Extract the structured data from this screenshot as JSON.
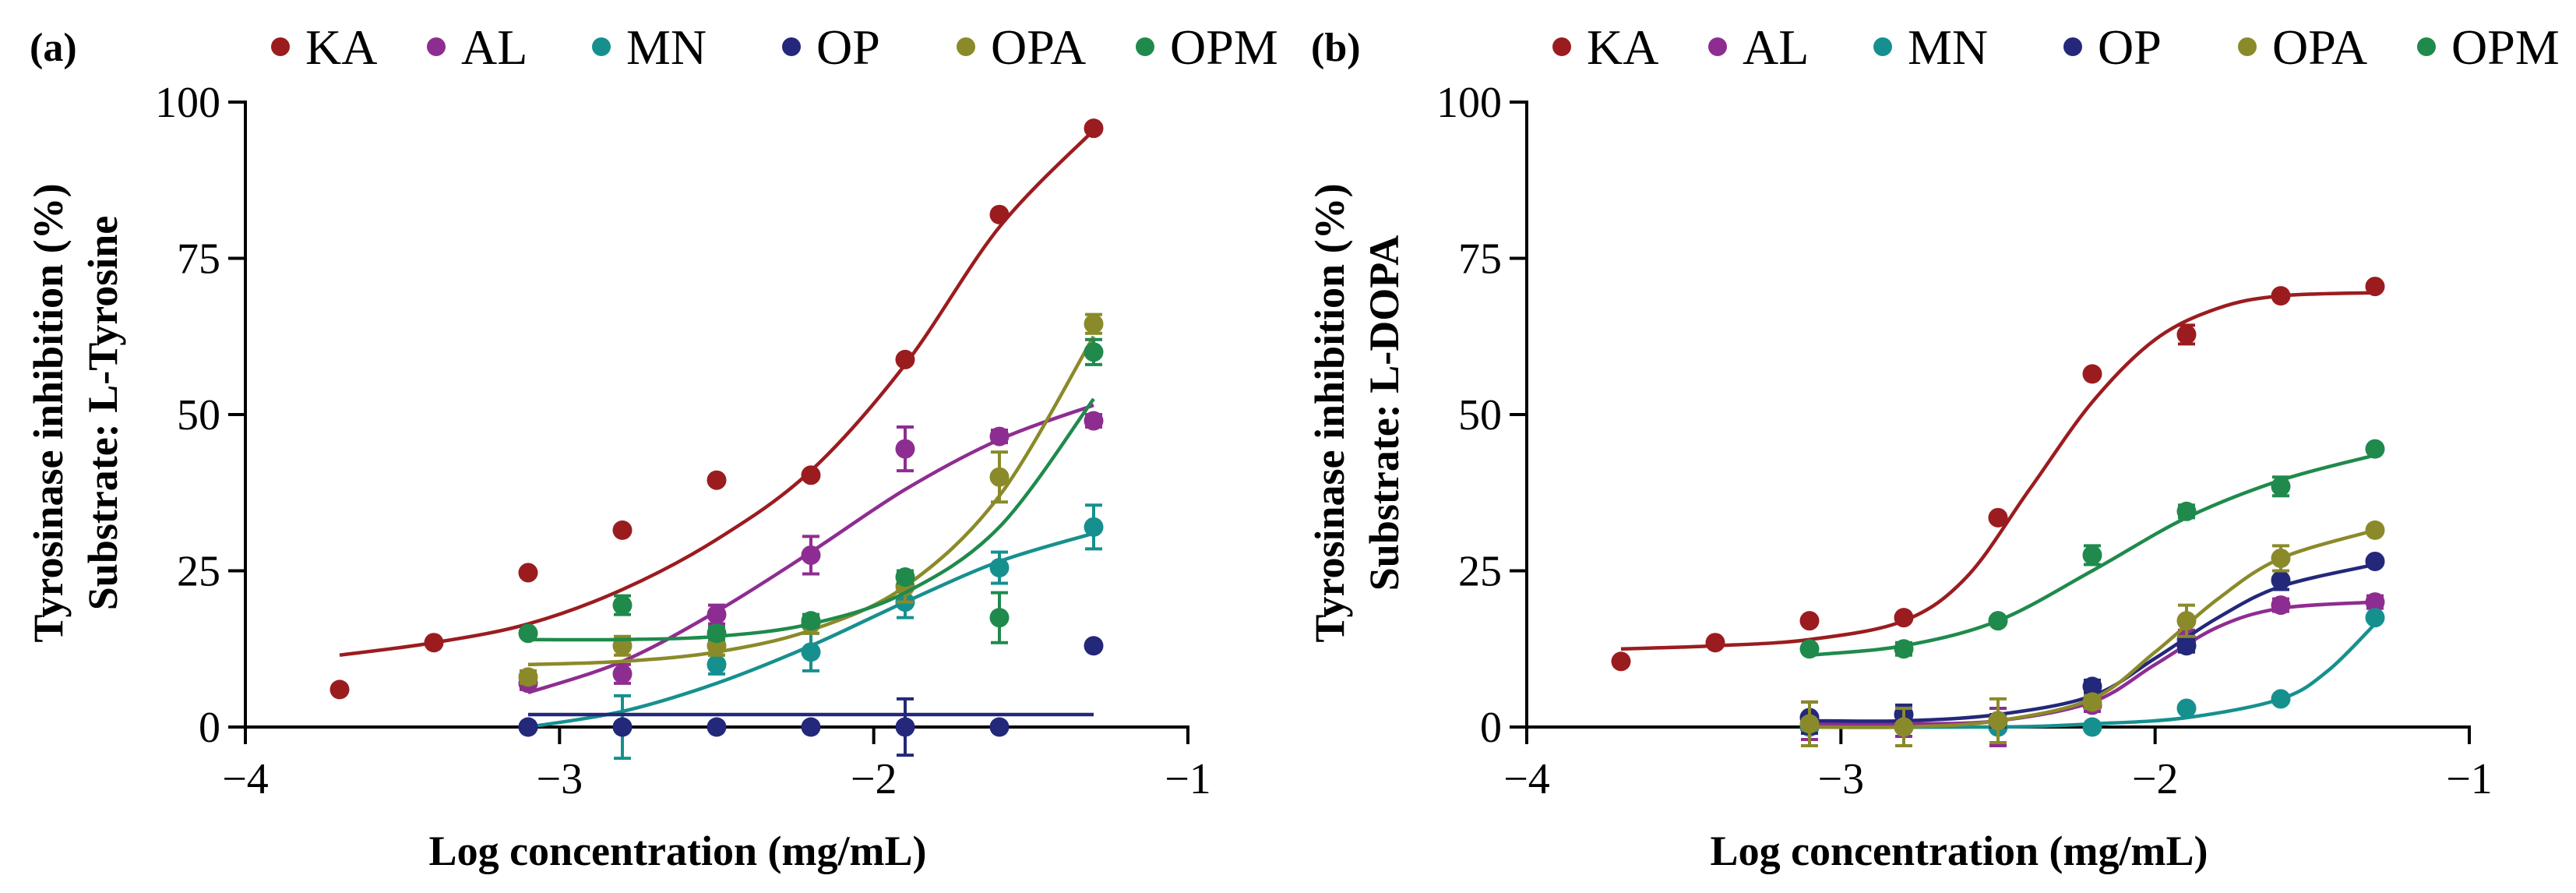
{
  "series_colors": {
    "KA": "#9b1c1f",
    "AL": "#8e2d91",
    "MN": "#16908f",
    "OP": "#23287a",
    "OPA": "#8a8a2a",
    "OPM": "#1f8a4c"
  },
  "legend_order": [
    "KA",
    "AL",
    "MN",
    "OP",
    "OPA",
    "OPM"
  ],
  "chart_data": [
    {
      "panel_label": "(a)",
      "type": "scatter",
      "title": "",
      "xlabel": "Log concentration (mg/mL)",
      "ylabel_line1": "Tyrosinase inhibition (%)",
      "ylabel_line2": "Substrate: L-Tyrosine",
      "xlim": [
        -4,
        -1
      ],
      "ylim": [
        0,
        100
      ],
      "xticks": [
        -4,
        -3,
        -2,
        -1
      ],
      "xtick_labels": [
        "−4",
        "−3",
        "−2",
        "−1"
      ],
      "yticks": [
        0,
        25,
        50,
        75,
        100
      ],
      "ytick_labels": [
        "0",
        "25",
        "50",
        "75",
        "100"
      ],
      "series": [
        {
          "name": "KA",
          "points": [
            {
              "x": -3.7,
              "y": 6,
              "err": 0
            },
            {
              "x": -3.4,
              "y": 13.5,
              "err": 0
            },
            {
              "x": -3.1,
              "y": 24.7,
              "err": 0
            },
            {
              "x": -2.8,
              "y": 31.5,
              "err": 0
            },
            {
              "x": -2.5,
              "y": 39.5,
              "err": 0
            },
            {
              "x": -2.2,
              "y": 40.3,
              "err": 0
            },
            {
              "x": -1.9,
              "y": 58.8,
              "err": 0
            },
            {
              "x": -1.6,
              "y": 82,
              "err": 0
            },
            {
              "x": -1.3,
              "y": 95.8,
              "err": 0
            }
          ],
          "curve": [
            [
              -3.7,
              11.5
            ],
            [
              -3.4,
              13.5
            ],
            [
              -3.1,
              16.5
            ],
            [
              -2.8,
              22
            ],
            [
              -2.5,
              30
            ],
            [
              -2.2,
              41
            ],
            [
              -1.9,
              58
            ],
            [
              -1.6,
              80
            ],
            [
              -1.3,
              95.5
            ]
          ]
        },
        {
          "name": "AL",
          "points": [
            {
              "x": -3.1,
              "y": 7,
              "err": 1
            },
            {
              "x": -2.8,
              "y": 8.5,
              "err": 1.5
            },
            {
              "x": -2.5,
              "y": 18,
              "err": 1.5
            },
            {
              "x": -2.2,
              "y": 27.5,
              "err": 3
            },
            {
              "x": -1.9,
              "y": 44.5,
              "err": 3.5
            },
            {
              "x": -1.6,
              "y": 46.5,
              "err": 1
            },
            {
              "x": -1.3,
              "y": 49,
              "err": 1
            }
          ],
          "curve": [
            [
              -3.1,
              5.5
            ],
            [
              -2.8,
              10.5
            ],
            [
              -2.5,
              18.5
            ],
            [
              -2.2,
              28
            ],
            [
              -1.9,
              38
            ],
            [
              -1.6,
              46
            ],
            [
              -1.3,
              51.5
            ]
          ]
        },
        {
          "name": "MN",
          "points": [
            {
              "x": -3.1,
              "y": 0,
              "err": 0
            },
            {
              "x": -2.8,
              "y": 0,
              "err": 5
            },
            {
              "x": -2.5,
              "y": 10,
              "err": 1.5
            },
            {
              "x": -2.2,
              "y": 12,
              "err": 3
            },
            {
              "x": -1.9,
              "y": 20,
              "err": 2.5
            },
            {
              "x": -1.6,
              "y": 25.5,
              "err": 2.5
            },
            {
              "x": -1.3,
              "y": 32,
              "err": 3.5
            }
          ],
          "curve": [
            [
              -3.1,
              0
            ],
            [
              -2.8,
              2.5
            ],
            [
              -2.5,
              7
            ],
            [
              -2.2,
              13
            ],
            [
              -1.9,
              20
            ],
            [
              -1.6,
              26.5
            ],
            [
              -1.3,
              31
            ]
          ]
        },
        {
          "name": "OP",
          "points": [
            {
              "x": -3.1,
              "y": 0,
              "err": 0
            },
            {
              "x": -2.8,
              "y": 0,
              "err": 0
            },
            {
              "x": -2.5,
              "y": 0,
              "err": 0
            },
            {
              "x": -2.2,
              "y": 0,
              "err": 0
            },
            {
              "x": -1.9,
              "y": 0,
              "err": 4.5
            },
            {
              "x": -1.6,
              "y": 0,
              "err": 0
            },
            {
              "x": -1.3,
              "y": 13,
              "err": 0
            }
          ],
          "curve": [
            [
              -3.1,
              2
            ],
            [
              -1.3,
              2
            ]
          ]
        },
        {
          "name": "OPA",
          "points": [
            {
              "x": -3.1,
              "y": 8,
              "err": 1
            },
            {
              "x": -2.8,
              "y": 13,
              "err": 1.5
            },
            {
              "x": -2.5,
              "y": 13,
              "err": 1.5
            },
            {
              "x": -2.2,
              "y": 16.5,
              "err": 1.5
            },
            {
              "x": -1.9,
              "y": 22.5,
              "err": 2.5
            },
            {
              "x": -1.6,
              "y": 40,
              "err": 4
            },
            {
              "x": -1.3,
              "y": 64.5,
              "err": 1.5
            }
          ],
          "curve": [
            [
              -3.1,
              10
            ],
            [
              -2.8,
              10.5
            ],
            [
              -2.5,
              12
            ],
            [
              -2.2,
              15.5
            ],
            [
              -1.9,
              22.5
            ],
            [
              -1.6,
              37
            ],
            [
              -1.3,
              62.5
            ]
          ]
        },
        {
          "name": "OPM",
          "points": [
            {
              "x": -3.1,
              "y": 15,
              "err": 0.5
            },
            {
              "x": -2.8,
              "y": 19.5,
              "err": 1.5
            },
            {
              "x": -2.5,
              "y": 15,
              "err": 1
            },
            {
              "x": -2.2,
              "y": 17,
              "err": 1
            },
            {
              "x": -1.9,
              "y": 24,
              "err": 1
            },
            {
              "x": -1.6,
              "y": 17.5,
              "err": 4
            },
            {
              "x": -1.3,
              "y": 60,
              "err": 2
            }
          ],
          "curve": [
            [
              -3.1,
              14
            ],
            [
              -2.8,
              14
            ],
            [
              -2.5,
              14.5
            ],
            [
              -2.2,
              16.5
            ],
            [
              -1.9,
              21.5
            ],
            [
              -1.6,
              32
            ],
            [
              -1.3,
              52.5
            ]
          ]
        }
      ]
    },
    {
      "panel_label": "(b)",
      "type": "scatter",
      "title": "",
      "xlabel": "Log concentration (mg/mL)",
      "ylabel_line1": "Tyrosinase inhibition (%)",
      "ylabel_line2": "Substrate: L-DOPA",
      "xlim": [
        -4,
        -1
      ],
      "ylim": [
        0,
        100
      ],
      "xticks": [
        -4,
        -3,
        -2,
        -1
      ],
      "xtick_labels": [
        "−4",
        "−3",
        "−2",
        "−1"
      ],
      "yticks": [
        0,
        25,
        50,
        75,
        100
      ],
      "ytick_labels": [
        "0",
        "25",
        "50",
        "75",
        "100"
      ],
      "series": [
        {
          "name": "KA",
          "points": [
            {
              "x": -3.7,
              "y": 10.5,
              "err": 0
            },
            {
              "x": -3.4,
              "y": 13.5,
              "err": 0
            },
            {
              "x": -3.1,
              "y": 17,
              "err": 0
            },
            {
              "x": -2.8,
              "y": 17.5,
              "err": 0
            },
            {
              "x": -2.5,
              "y": 33.5,
              "err": 0
            },
            {
              "x": -2.2,
              "y": 56.5,
              "err": 0
            },
            {
              "x": -1.9,
              "y": 62.8,
              "err": 1.5
            },
            {
              "x": -1.6,
              "y": 69,
              "err": 0
            },
            {
              "x": -1.3,
              "y": 70.5,
              "err": 0
            }
          ],
          "curve": [
            [
              -3.7,
              12.5
            ],
            [
              -3.4,
              13
            ],
            [
              -3.1,
              14
            ],
            [
              -2.8,
              17
            ],
            [
              -2.6,
              24
            ],
            [
              -2.4,
              38
            ],
            [
              -2.2,
              52
            ],
            [
              -2.0,
              62
            ],
            [
              -1.8,
              67
            ],
            [
              -1.6,
              69
            ],
            [
              -1.3,
              69.5
            ]
          ]
        },
        {
          "name": "AL",
          "points": [
            {
              "x": -3.1,
              "y": 0,
              "err": 2
            },
            {
              "x": -2.8,
              "y": 0,
              "err": 1.5
            },
            {
              "x": -2.5,
              "y": 0,
              "err": 3
            },
            {
              "x": -2.2,
              "y": 3.5,
              "err": 1
            },
            {
              "x": -1.9,
              "y": 14,
              "err": 1.5
            },
            {
              "x": -1.6,
              "y": 19.5,
              "err": 1
            },
            {
              "x": -1.3,
              "y": 20,
              "err": 1
            }
          ],
          "curve": [
            [
              -3.1,
              0.5
            ],
            [
              -2.8,
              0.5
            ],
            [
              -2.5,
              1
            ],
            [
              -2.2,
              4
            ],
            [
              -2.0,
              10
            ],
            [
              -1.8,
              16
            ],
            [
              -1.6,
              19
            ],
            [
              -1.3,
              20
            ]
          ]
        },
        {
          "name": "MN",
          "points": [
            {
              "x": -3.1,
              "y": 0,
              "err": 0
            },
            {
              "x": -2.8,
              "y": 0,
              "err": 0
            },
            {
              "x": -2.5,
              "y": 0,
              "err": 0
            },
            {
              "x": -2.2,
              "y": 0,
              "err": 0
            },
            {
              "x": -1.9,
              "y": 3,
              "err": 0
            },
            {
              "x": -1.6,
              "y": 4.5,
              "err": 0
            },
            {
              "x": -1.3,
              "y": 17.5,
              "err": 0
            }
          ],
          "curve": [
            [
              -3.1,
              0
            ],
            [
              -2.5,
              0
            ],
            [
              -2.2,
              0.5
            ],
            [
              -1.9,
              1.5
            ],
            [
              -1.6,
              4.5
            ],
            [
              -1.45,
              9
            ],
            [
              -1.3,
              16.5
            ]
          ]
        },
        {
          "name": "OP",
          "points": [
            {
              "x": -3.1,
              "y": 1.5,
              "err": 2.5
            },
            {
              "x": -2.8,
              "y": 2,
              "err": 1.5
            },
            {
              "x": -2.5,
              "y": 1,
              "err": 1
            },
            {
              "x": -2.2,
              "y": 6.5,
              "err": 1
            },
            {
              "x": -1.9,
              "y": 13,
              "err": 1
            },
            {
              "x": -1.6,
              "y": 23.5,
              "err": 1.5
            },
            {
              "x": -1.3,
              "y": 26.5,
              "err": 0.5
            }
          ],
          "curve": [
            [
              -3.1,
              1
            ],
            [
              -2.8,
              1
            ],
            [
              -2.5,
              2
            ],
            [
              -2.2,
              5
            ],
            [
              -2.0,
              11
            ],
            [
              -1.8,
              17.5
            ],
            [
              -1.6,
              22.5
            ],
            [
              -1.3,
              26
            ]
          ]
        },
        {
          "name": "OPA",
          "points": [
            {
              "x": -3.1,
              "y": 0.5,
              "err": 3.5
            },
            {
              "x": -2.8,
              "y": 0,
              "err": 3
            },
            {
              "x": -2.5,
              "y": 1,
              "err": 3.5
            },
            {
              "x": -2.2,
              "y": 4,
              "err": 1
            },
            {
              "x": -1.9,
              "y": 17,
              "err": 2.5
            },
            {
              "x": -1.6,
              "y": 27,
              "err": 2
            },
            {
              "x": -1.3,
              "y": 31.5,
              "err": 0.5
            }
          ],
          "curve": [
            [
              -3.1,
              0
            ],
            [
              -2.8,
              0
            ],
            [
              -2.5,
              1
            ],
            [
              -2.2,
              4.5
            ],
            [
              -2.0,
              12
            ],
            [
              -1.8,
              20.5
            ],
            [
              -1.6,
              27
            ],
            [
              -1.3,
              31.5
            ]
          ]
        },
        {
          "name": "OPM",
          "points": [
            {
              "x": -3.1,
              "y": 12.5,
              "err": 0.5
            },
            {
              "x": -2.8,
              "y": 12.5,
              "err": 1
            },
            {
              "x": -2.5,
              "y": 17,
              "err": 0.5
            },
            {
              "x": -2.2,
              "y": 27.5,
              "err": 1.5
            },
            {
              "x": -1.9,
              "y": 34.5,
              "err": 1
            },
            {
              "x": -1.6,
              "y": 38.5,
              "err": 1.5
            },
            {
              "x": -1.3,
              "y": 44.5,
              "err": 0.5
            }
          ],
          "curve": [
            [
              -3.1,
              11.5
            ],
            [
              -2.8,
              13
            ],
            [
              -2.5,
              17
            ],
            [
              -2.2,
              25
            ],
            [
              -1.9,
              33.5
            ],
            [
              -1.6,
              39.5
            ],
            [
              -1.3,
              43.5
            ]
          ]
        }
      ]
    }
  ]
}
